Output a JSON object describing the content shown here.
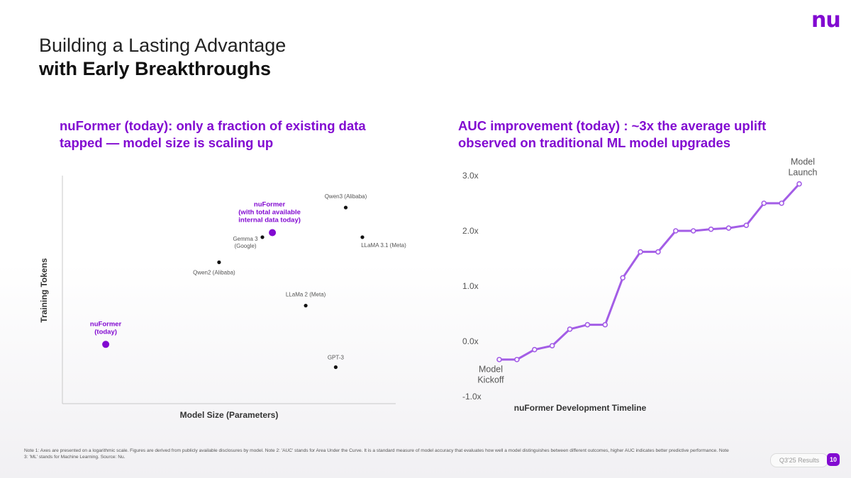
{
  "brand": {
    "logo_text": "nu",
    "accent": "#820ad1",
    "line_color": "#a35de6"
  },
  "title": {
    "line1": "Building a Lasting Advantage",
    "line2": "with Early Breakthroughs"
  },
  "left_subhead": {
    "line1": "nuFormer (today): only a fraction of existing data",
    "line2": "tapped — model size is scaling up"
  },
  "right_subhead": {
    "line1": "AUC improvement (today) : ~3x the average uplift",
    "line2": "observed on traditional ML model upgrades"
  },
  "chart_data": [
    {
      "type": "scatter",
      "xlabel": "Model Size (Parameters)",
      "ylabel": "Training Tokens",
      "scale": "log",
      "note": "relative positions on logarithmic axes, no numeric tick labels shown",
      "xlim": [
        0,
        100
      ],
      "ylim": [
        0,
        100
      ],
      "points": [
        {
          "label": [
            "nuFormer",
            "(today)"
          ],
          "x": 13,
          "y": 26,
          "highlight": true
        },
        {
          "label": [
            "nuFormer",
            "(with total available",
            "internal data today)"
          ],
          "x": 63,
          "y": 75,
          "highlight": true
        },
        {
          "label": [
            "Gemma 3",
            "(Google)"
          ],
          "x": 60,
          "y": 73,
          "highlight": false
        },
        {
          "label": [
            "Qwen3 (Alibaba)"
          ],
          "x": 85,
          "y": 86,
          "highlight": false
        },
        {
          "label": [
            "LLaMA 3.1 (Meta)"
          ],
          "x": 90,
          "y": 73,
          "highlight": false
        },
        {
          "label": [
            "Qwen2 (Alibaba)"
          ],
          "x": 47,
          "y": 62,
          "highlight": false
        },
        {
          "label": [
            "LLaMa 2 (Meta)"
          ],
          "x": 73,
          "y": 43,
          "highlight": false
        },
        {
          "label": [
            "GPT-3"
          ],
          "x": 82,
          "y": 16,
          "highlight": false
        }
      ]
    },
    {
      "type": "line",
      "title": "AUC improvement",
      "xlabel": "nuFormer Development Timeline",
      "ylabel": "",
      "ylim": [
        -1.0,
        3.0
      ],
      "yticks": [
        "3.0x",
        "2.0x",
        "1.0x",
        "0.0x",
        "-1.0x"
      ],
      "ytick_values": [
        3.0,
        2.0,
        1.0,
        0.0,
        -1.0
      ],
      "values": [
        -0.33,
        -0.33,
        -0.15,
        -0.08,
        0.22,
        0.3,
        0.3,
        1.15,
        1.62,
        1.62,
        2.0,
        2.0,
        2.03,
        2.05,
        2.1,
        2.5,
        2.5,
        2.85
      ],
      "annotations": {
        "start": [
          "Model",
          "Kickoff"
        ],
        "end": [
          "Model",
          "Launch"
        ]
      }
    }
  ],
  "footnote": "Note 1: Axes are presented on a logarithmic scale. Figures are derived from publicly available disclosures by model. Note 2: 'AUC' stands for Area Under the Curve. It is a standard measure of model accuracy that evaluates how well a model distinguishes between different outcomes, higher AUC indicates better predictive performance. Note 3: 'ML' stands for Machine Learning. Source: Nu.",
  "footer": {
    "badge": "Q3'25 Results",
    "page": "10"
  }
}
